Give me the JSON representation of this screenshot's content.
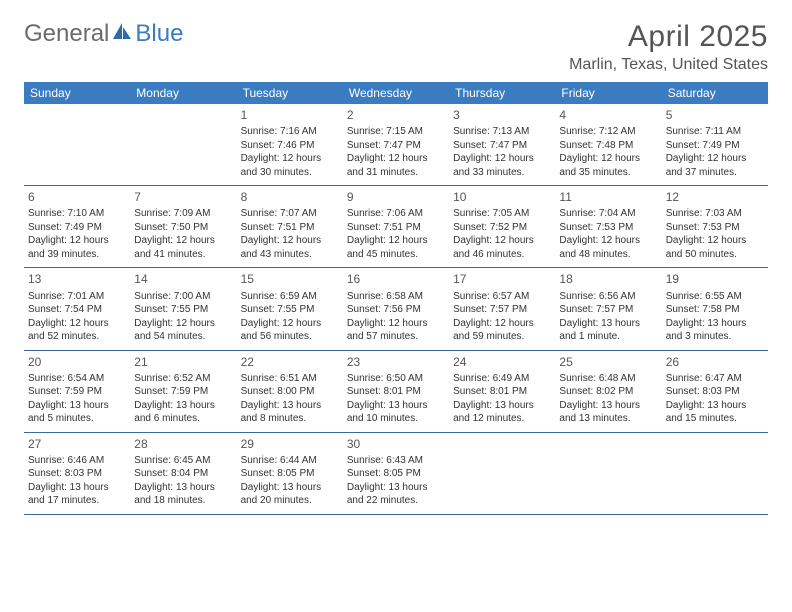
{
  "logo": {
    "text_general": "General",
    "text_blue": "Blue",
    "icon_color": "#2f6aa8"
  },
  "header": {
    "month_title": "April 2025",
    "location": "Marlin, Texas, United States"
  },
  "colors": {
    "header_bg": "#3b7bbf",
    "header_text": "#ffffff",
    "row_border": "#3b6a9a",
    "body_text": "#333333",
    "title_text": "#555555"
  },
  "day_names": [
    "Sunday",
    "Monday",
    "Tuesday",
    "Wednesday",
    "Thursday",
    "Friday",
    "Saturday"
  ],
  "weeks": [
    [
      {
        "day": "",
        "sunrise": "",
        "sunset": "",
        "daylight": ""
      },
      {
        "day": "",
        "sunrise": "",
        "sunset": "",
        "daylight": ""
      },
      {
        "day": "1",
        "sunrise": "Sunrise: 7:16 AM",
        "sunset": "Sunset: 7:46 PM",
        "daylight": "Daylight: 12 hours and 30 minutes."
      },
      {
        "day": "2",
        "sunrise": "Sunrise: 7:15 AM",
        "sunset": "Sunset: 7:47 PM",
        "daylight": "Daylight: 12 hours and 31 minutes."
      },
      {
        "day": "3",
        "sunrise": "Sunrise: 7:13 AM",
        "sunset": "Sunset: 7:47 PM",
        "daylight": "Daylight: 12 hours and 33 minutes."
      },
      {
        "day": "4",
        "sunrise": "Sunrise: 7:12 AM",
        "sunset": "Sunset: 7:48 PM",
        "daylight": "Daylight: 12 hours and 35 minutes."
      },
      {
        "day": "5",
        "sunrise": "Sunrise: 7:11 AM",
        "sunset": "Sunset: 7:49 PM",
        "daylight": "Daylight: 12 hours and 37 minutes."
      }
    ],
    [
      {
        "day": "6",
        "sunrise": "Sunrise: 7:10 AM",
        "sunset": "Sunset: 7:49 PM",
        "daylight": "Daylight: 12 hours and 39 minutes."
      },
      {
        "day": "7",
        "sunrise": "Sunrise: 7:09 AM",
        "sunset": "Sunset: 7:50 PM",
        "daylight": "Daylight: 12 hours and 41 minutes."
      },
      {
        "day": "8",
        "sunrise": "Sunrise: 7:07 AM",
        "sunset": "Sunset: 7:51 PM",
        "daylight": "Daylight: 12 hours and 43 minutes."
      },
      {
        "day": "9",
        "sunrise": "Sunrise: 7:06 AM",
        "sunset": "Sunset: 7:51 PM",
        "daylight": "Daylight: 12 hours and 45 minutes."
      },
      {
        "day": "10",
        "sunrise": "Sunrise: 7:05 AM",
        "sunset": "Sunset: 7:52 PM",
        "daylight": "Daylight: 12 hours and 46 minutes."
      },
      {
        "day": "11",
        "sunrise": "Sunrise: 7:04 AM",
        "sunset": "Sunset: 7:53 PM",
        "daylight": "Daylight: 12 hours and 48 minutes."
      },
      {
        "day": "12",
        "sunrise": "Sunrise: 7:03 AM",
        "sunset": "Sunset: 7:53 PM",
        "daylight": "Daylight: 12 hours and 50 minutes."
      }
    ],
    [
      {
        "day": "13",
        "sunrise": "Sunrise: 7:01 AM",
        "sunset": "Sunset: 7:54 PM",
        "daylight": "Daylight: 12 hours and 52 minutes."
      },
      {
        "day": "14",
        "sunrise": "Sunrise: 7:00 AM",
        "sunset": "Sunset: 7:55 PM",
        "daylight": "Daylight: 12 hours and 54 minutes."
      },
      {
        "day": "15",
        "sunrise": "Sunrise: 6:59 AM",
        "sunset": "Sunset: 7:55 PM",
        "daylight": "Daylight: 12 hours and 56 minutes."
      },
      {
        "day": "16",
        "sunrise": "Sunrise: 6:58 AM",
        "sunset": "Sunset: 7:56 PM",
        "daylight": "Daylight: 12 hours and 57 minutes."
      },
      {
        "day": "17",
        "sunrise": "Sunrise: 6:57 AM",
        "sunset": "Sunset: 7:57 PM",
        "daylight": "Daylight: 12 hours and 59 minutes."
      },
      {
        "day": "18",
        "sunrise": "Sunrise: 6:56 AM",
        "sunset": "Sunset: 7:57 PM",
        "daylight": "Daylight: 13 hours and 1 minute."
      },
      {
        "day": "19",
        "sunrise": "Sunrise: 6:55 AM",
        "sunset": "Sunset: 7:58 PM",
        "daylight": "Daylight: 13 hours and 3 minutes."
      }
    ],
    [
      {
        "day": "20",
        "sunrise": "Sunrise: 6:54 AM",
        "sunset": "Sunset: 7:59 PM",
        "daylight": "Daylight: 13 hours and 5 minutes."
      },
      {
        "day": "21",
        "sunrise": "Sunrise: 6:52 AM",
        "sunset": "Sunset: 7:59 PM",
        "daylight": "Daylight: 13 hours and 6 minutes."
      },
      {
        "day": "22",
        "sunrise": "Sunrise: 6:51 AM",
        "sunset": "Sunset: 8:00 PM",
        "daylight": "Daylight: 13 hours and 8 minutes."
      },
      {
        "day": "23",
        "sunrise": "Sunrise: 6:50 AM",
        "sunset": "Sunset: 8:01 PM",
        "daylight": "Daylight: 13 hours and 10 minutes."
      },
      {
        "day": "24",
        "sunrise": "Sunrise: 6:49 AM",
        "sunset": "Sunset: 8:01 PM",
        "daylight": "Daylight: 13 hours and 12 minutes."
      },
      {
        "day": "25",
        "sunrise": "Sunrise: 6:48 AM",
        "sunset": "Sunset: 8:02 PM",
        "daylight": "Daylight: 13 hours and 13 minutes."
      },
      {
        "day": "26",
        "sunrise": "Sunrise: 6:47 AM",
        "sunset": "Sunset: 8:03 PM",
        "daylight": "Daylight: 13 hours and 15 minutes."
      }
    ],
    [
      {
        "day": "27",
        "sunrise": "Sunrise: 6:46 AM",
        "sunset": "Sunset: 8:03 PM",
        "daylight": "Daylight: 13 hours and 17 minutes."
      },
      {
        "day": "28",
        "sunrise": "Sunrise: 6:45 AM",
        "sunset": "Sunset: 8:04 PM",
        "daylight": "Daylight: 13 hours and 18 minutes."
      },
      {
        "day": "29",
        "sunrise": "Sunrise: 6:44 AM",
        "sunset": "Sunset: 8:05 PM",
        "daylight": "Daylight: 13 hours and 20 minutes."
      },
      {
        "day": "30",
        "sunrise": "Sunrise: 6:43 AM",
        "sunset": "Sunset: 8:05 PM",
        "daylight": "Daylight: 13 hours and 22 minutes."
      },
      {
        "day": "",
        "sunrise": "",
        "sunset": "",
        "daylight": ""
      },
      {
        "day": "",
        "sunrise": "",
        "sunset": "",
        "daylight": ""
      },
      {
        "day": "",
        "sunrise": "",
        "sunset": "",
        "daylight": ""
      }
    ]
  ]
}
